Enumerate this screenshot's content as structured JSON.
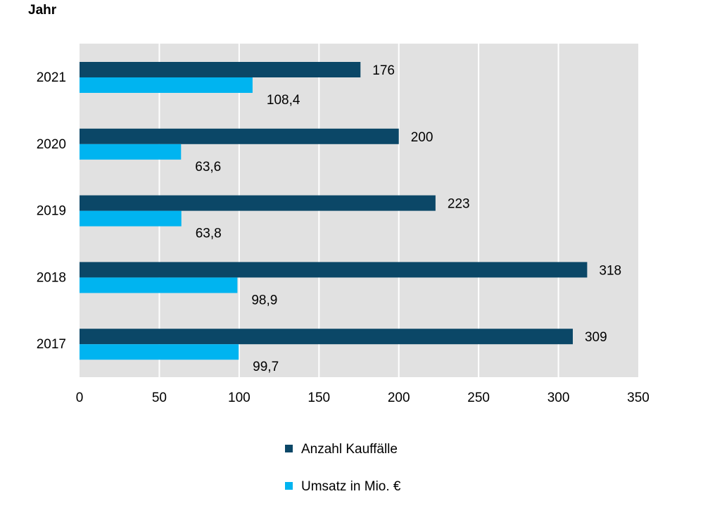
{
  "chart_data": {
    "type": "bar",
    "orientation": "horizontal",
    "ylabel": "Jahr",
    "categories": [
      "2021",
      "2020",
      "2019",
      "2018",
      "2017"
    ],
    "series": [
      {
        "name": "Anzahl Kauffälle",
        "color": "#0b4767",
        "values": [
          176,
          200,
          223,
          318,
          309
        ],
        "labels": [
          "176",
          "200",
          "223",
          "318",
          "309"
        ]
      },
      {
        "name": "Umsatz in Mio. €",
        "color": "#00b4f0",
        "values": [
          108.4,
          63.6,
          63.8,
          98.9,
          99.7
        ],
        "labels": [
          "108,4",
          "63,6",
          "63,8",
          "98,9",
          "99,7"
        ]
      }
    ],
    "xlim": [
      0,
      350
    ],
    "xticks": [
      0,
      50,
      100,
      150,
      200,
      250,
      300,
      350
    ],
    "grid": true,
    "plot_background": "#e1e1e1",
    "legend_position": "bottom"
  }
}
